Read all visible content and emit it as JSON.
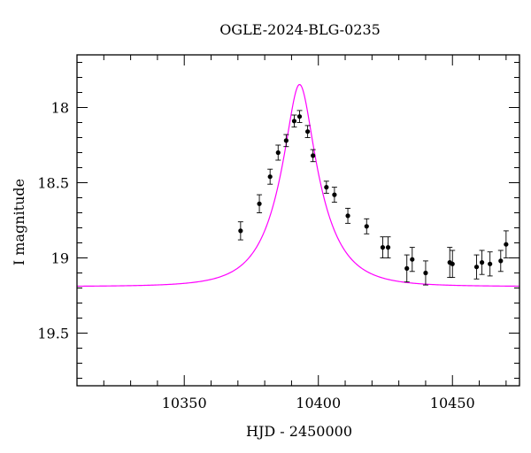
{
  "chart_data": {
    "type": "scatter",
    "title": "OGLE-2024-BLG-0235",
    "xlabel": "HJD - 2450000",
    "ylabel": "I magnitude",
    "xlim": [
      10310,
      10475
    ],
    "ylim": [
      19.85,
      17.65
    ],
    "y_inverted": true,
    "x_ticks": [
      10350,
      10400,
      10450
    ],
    "x_tick_labels": [
      "10350",
      "10400",
      "10450"
    ],
    "y_ticks": [
      18,
      18.5,
      19,
      19.5
    ],
    "y_tick_labels": [
      "18",
      "18.5",
      "19",
      "19.5"
    ],
    "grid": false,
    "series": [
      {
        "kind": "points_with_errorbars",
        "color": "#000000",
        "points": [
          {
            "x": 10371,
            "y": 18.82,
            "err": 0.06
          },
          {
            "x": 10378,
            "y": 18.64,
            "err": 0.06
          },
          {
            "x": 10382,
            "y": 18.46,
            "err": 0.05
          },
          {
            "x": 10385,
            "y": 18.3,
            "err": 0.05
          },
          {
            "x": 10388,
            "y": 18.22,
            "err": 0.04
          },
          {
            "x": 10391,
            "y": 18.09,
            "err": 0.04
          },
          {
            "x": 10393,
            "y": 18.06,
            "err": 0.04
          },
          {
            "x": 10396,
            "y": 18.16,
            "err": 0.04
          },
          {
            "x": 10398,
            "y": 18.32,
            "err": 0.04
          },
          {
            "x": 10403,
            "y": 18.53,
            "err": 0.04
          },
          {
            "x": 10406,
            "y": 18.58,
            "err": 0.05
          },
          {
            "x": 10411,
            "y": 18.72,
            "err": 0.05
          },
          {
            "x": 10418,
            "y": 18.79,
            "err": 0.05
          },
          {
            "x": 10424,
            "y": 18.93,
            "err": 0.07
          },
          {
            "x": 10426,
            "y": 18.93,
            "err": 0.07
          },
          {
            "x": 10433,
            "y": 19.07,
            "err": 0.09
          },
          {
            "x": 10435,
            "y": 19.01,
            "err": 0.08
          },
          {
            "x": 10440,
            "y": 19.1,
            "err": 0.08
          },
          {
            "x": 10449,
            "y": 19.03,
            "err": 0.1
          },
          {
            "x": 10450,
            "y": 19.04,
            "err": 0.09
          },
          {
            "x": 10459,
            "y": 19.06,
            "err": 0.08
          },
          {
            "x": 10461,
            "y": 19.03,
            "err": 0.08
          },
          {
            "x": 10464,
            "y": 19.04,
            "err": 0.08
          },
          {
            "x": 10468,
            "y": 19.02,
            "err": 0.07
          },
          {
            "x": 10470,
            "y": 18.91,
            "err": 0.09
          }
        ]
      },
      {
        "kind": "model_curve",
        "color": "#ff00ff",
        "model": {
          "t0": 10393,
          "tE": 15.0,
          "u0": 0.3,
          "baseline": 19.19
        }
      }
    ]
  }
}
